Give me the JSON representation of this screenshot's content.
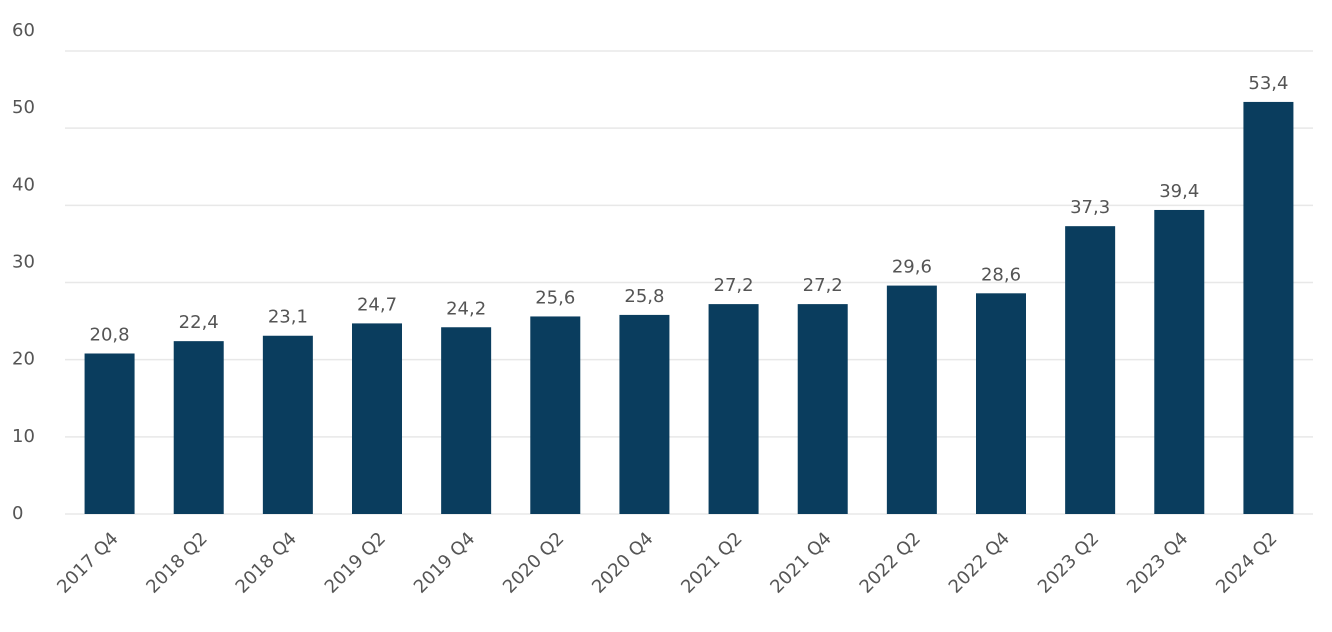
{
  "chart_data": {
    "type": "bar",
    "categories": [
      "2017 Q4",
      "2018 Q2",
      "2018 Q4",
      "2019 Q2",
      "2019 Q4",
      "2020 Q2",
      "2020 Q4",
      "2021 Q2",
      "2021 Q4",
      "2022 Q2",
      "2022 Q4",
      "2023 Q2",
      "2023 Q4",
      "2024 Q2"
    ],
    "values": [
      20.8,
      22.4,
      23.1,
      24.7,
      24.2,
      25.6,
      25.8,
      27.2,
      27.2,
      29.6,
      28.6,
      37.3,
      39.4,
      53.4
    ],
    "value_labels": [
      "20,8",
      "22,4",
      "23,1",
      "24,7",
      "24,2",
      "25,6",
      "25,8",
      "27,2",
      "27,2",
      "29,6",
      "28,6",
      "37,3",
      "39,4",
      "53,4"
    ],
    "color": "#0a3d5e",
    "ylim": [
      0,
      60
    ],
    "yticks": [
      0,
      10,
      20,
      30,
      40,
      50,
      60
    ],
    "grid": true
  }
}
